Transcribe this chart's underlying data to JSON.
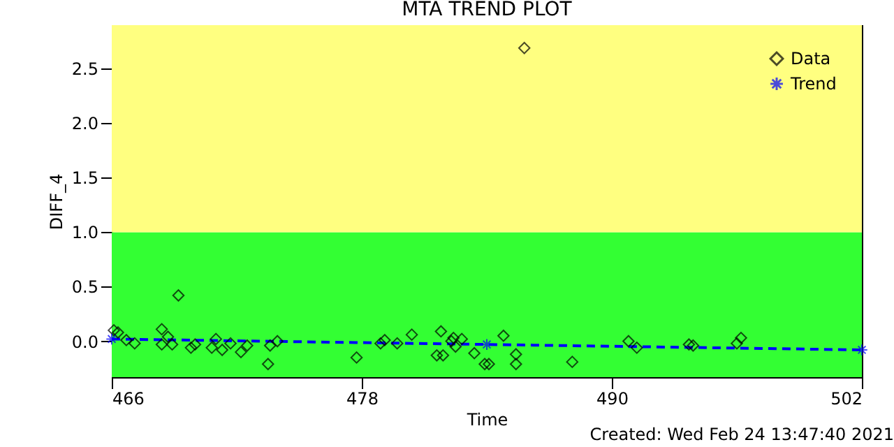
{
  "chart_data": {
    "type": "scatter",
    "title": "MTA TREND PLOT",
    "xlabel": "Time",
    "ylabel": "DIFF_4",
    "annotations": [
      "Created: Wed Feb 24 13:47:40 2021"
    ],
    "xlim": [
      466,
      502
    ],
    "xticks": [
      466,
      478,
      490,
      502
    ],
    "ylim": [
      -0.33,
      2.9
    ],
    "yticks": [
      {
        "value": 0,
        "label": "0.0"
      },
      0.5,
      {
        "value": 1,
        "label": "1.0"
      },
      1.5,
      {
        "value": 2,
        "label": "2.0"
      },
      2.5
    ],
    "grid": false,
    "legend": "top right",
    "marker": "diamond",
    "bands": [
      {
        "axis": "y",
        "from": -0.33,
        "to": 1.0,
        "color": "#33ff33"
      },
      {
        "axis": "y",
        "from": 1.0,
        "to": 2.9,
        "color": "#ffff80"
      }
    ],
    "series": [
      {
        "name": "Data",
        "color": "#000000",
        "x": [
          466.1,
          466.3,
          466.7,
          467.1,
          468.4,
          468.4,
          468.7,
          468.9,
          469.2,
          469.8,
          470.0,
          470.8,
          471.0,
          471.3,
          471.7,
          472.2,
          472.5,
          473.5,
          473.6,
          473.95,
          477.75,
          478.9,
          479.1,
          479.7,
          480.4,
          481.6,
          481.8,
          481.9,
          482.3,
          482.4,
          482.5,
          482.8,
          483.4,
          483.9,
          484.1,
          484.8,
          485.4,
          485.4,
          485.8,
          488.1,
          490.8,
          491.2,
          493.7,
          493.9,
          496.0,
          496.2
        ],
        "values": [
          0.1,
          0.08,
          0.01,
          -0.02,
          0.11,
          -0.03,
          0.04,
          -0.03,
          0.42,
          -0.06,
          -0.03,
          -0.06,
          0.02,
          -0.08,
          -0.02,
          -0.1,
          -0.04,
          -0.21,
          -0.04,
          0.0,
          -0.15,
          -0.02,
          0.01,
          -0.02,
          0.06,
          -0.13,
          0.09,
          -0.13,
          0.0,
          0.03,
          -0.05,
          0.02,
          -0.11,
          -0.21,
          -0.21,
          0.05,
          -0.12,
          -0.21,
          2.69,
          -0.19,
          0.0,
          -0.06,
          -0.03,
          -0.04,
          -0.02,
          0.03
        ]
      },
      {
        "name": "Trend",
        "type": "line",
        "color": "#0000ff",
        "marker": "cross",
        "line_style": "dashed",
        "x": [
          466,
          484,
          502
        ],
        "values": [
          0.02,
          -0.03,
          -0.08
        ]
      }
    ]
  }
}
